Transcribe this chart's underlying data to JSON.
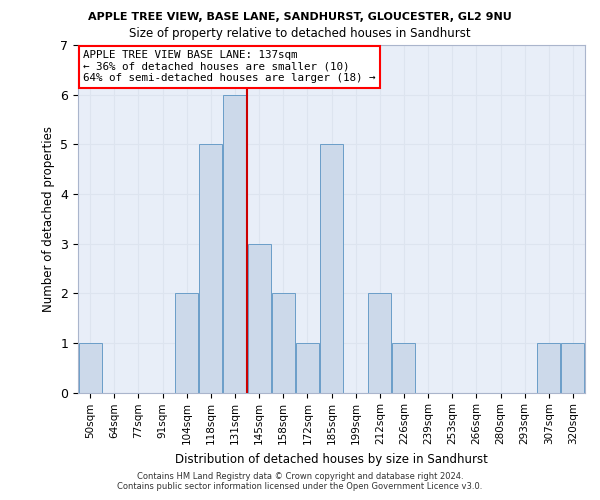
{
  "title": "APPLE TREE VIEW, BASE LANE, SANDHURST, GLOUCESTER, GL2 9NU",
  "subtitle": "Size of property relative to detached houses in Sandhurst",
  "xlabel": "Distribution of detached houses by size in Sandhurst",
  "ylabel": "Number of detached properties",
  "bar_labels": [
    "50sqm",
    "64sqm",
    "77sqm",
    "91sqm",
    "104sqm",
    "118sqm",
    "131sqm",
    "145sqm",
    "158sqm",
    "172sqm",
    "185sqm",
    "199sqm",
    "212sqm",
    "226sqm",
    "239sqm",
    "253sqm",
    "266sqm",
    "280sqm",
    "293sqm",
    "307sqm",
    "320sqm"
  ],
  "bar_values": [
    1,
    0,
    0,
    0,
    2,
    5,
    6,
    3,
    2,
    1,
    5,
    0,
    2,
    1,
    0,
    0,
    0,
    0,
    0,
    1,
    1
  ],
  "bar_color": "#ccd9ea",
  "bar_edge_color": "#6a9dc8",
  "grid_color": "#dde4ef",
  "background_color": "#e8eef8",
  "vline_x_index": 6,
  "annotation_text_line1": "APPLE TREE VIEW BASE LANE: 137sqm",
  "annotation_text_line2": "← 36% of detached houses are smaller (10)",
  "annotation_text_line3": "64% of semi-detached houses are larger (18) →",
  "vline_color": "#cc0000",
  "ylim": [
    0,
    7
  ],
  "yticks": [
    0,
    1,
    2,
    3,
    4,
    5,
    6,
    7
  ],
  "title_fontsize": 8.0,
  "subtitle_fontsize": 8.5,
  "footer_line1": "Contains HM Land Registry data © Crown copyright and database right 2024.",
  "footer_line2": "Contains public sector information licensed under the Open Government Licence v3.0."
}
